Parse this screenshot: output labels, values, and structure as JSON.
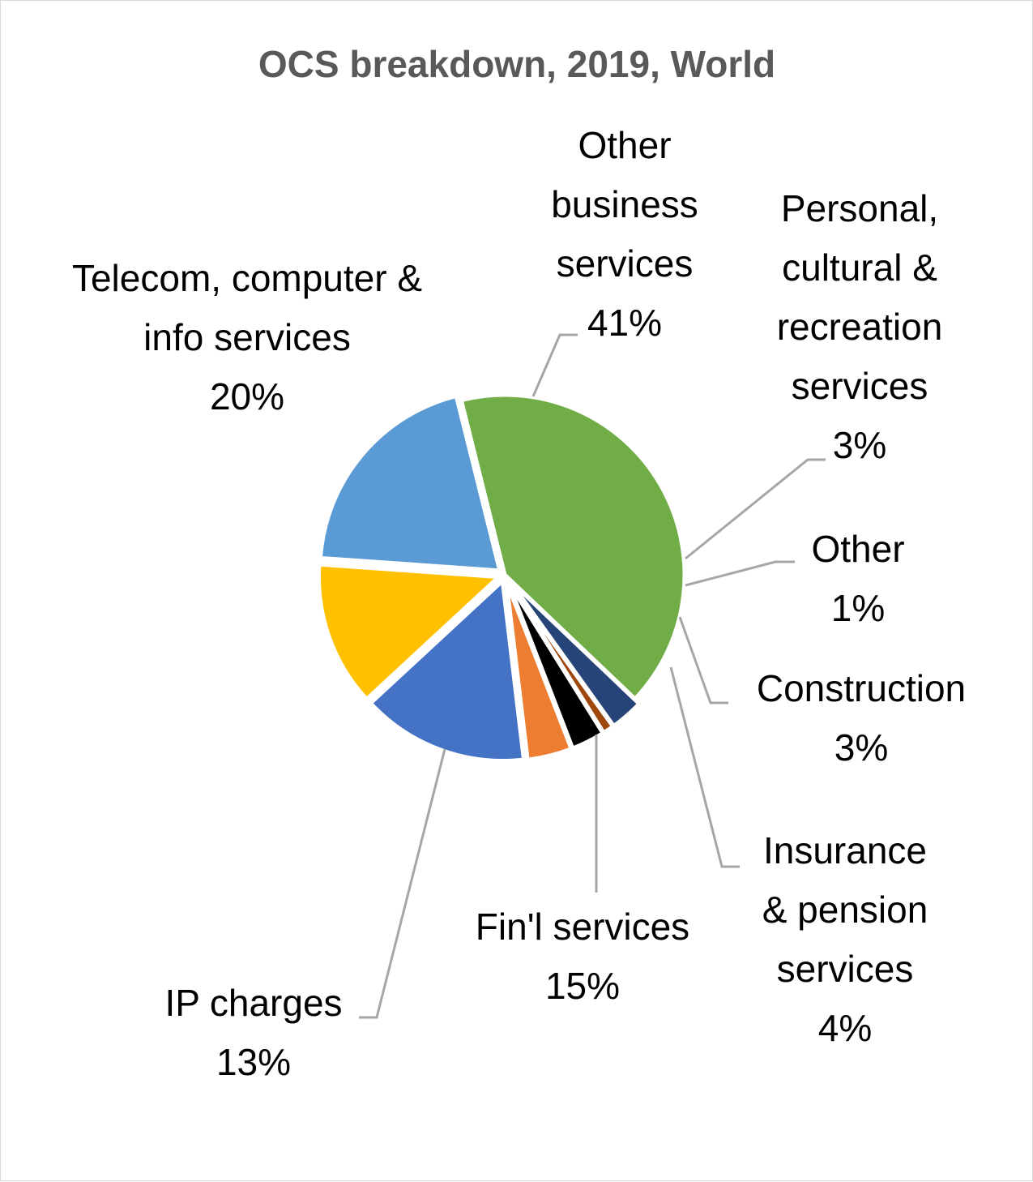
{
  "chart_data": {
    "type": "pie",
    "title": "OCS breakdown, 2019, World",
    "slices": [
      {
        "label": "Other business services",
        "label_lines": [
          "Other",
          "business",
          "services",
          "41%"
        ],
        "value": 41,
        "color": "#70ad47"
      },
      {
        "label": "Personal, cultural & recreation services",
        "label_lines": [
          "Personal,",
          "cultural &",
          "recreation",
          "services",
          "3%"
        ],
        "value": 3,
        "color": "#264478"
      },
      {
        "label": "Other",
        "label_lines": [
          "Other",
          "1%"
        ],
        "value": 1,
        "color": "#9e480e"
      },
      {
        "label": "Construction",
        "label_lines": [
          "Construction",
          "3%"
        ],
        "value": 3,
        "color": "#000000"
      },
      {
        "label": "Insurance & pension services",
        "label_lines": [
          "Insurance",
          "& pension",
          "services",
          "4%"
        ],
        "value": 4,
        "color": "#ed7d31"
      },
      {
        "label": "Fin'l services",
        "label_lines": [
          "Fin'l services",
          "15%"
        ],
        "value": 15,
        "color": "#4472c4"
      },
      {
        "label": "IP charges",
        "label_lines": [
          "IP charges",
          "13%"
        ],
        "value": 13,
        "color": "#ffc000"
      },
      {
        "label": "Telecom, computer & info services",
        "label_lines": [
          "Telecom, computer &",
          "info services",
          "20%"
        ],
        "value": 20,
        "color": "#5b9bd5"
      }
    ]
  }
}
